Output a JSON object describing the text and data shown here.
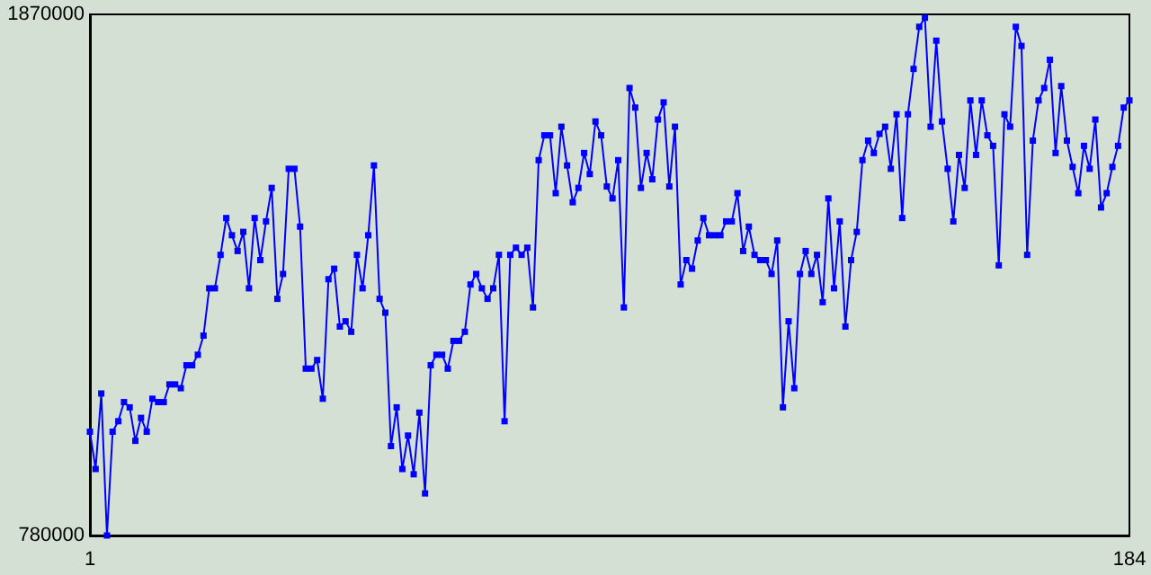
{
  "chart_data": {
    "type": "line",
    "x": [
      1,
      2,
      3,
      4,
      5,
      6,
      7,
      8,
      9,
      10,
      11,
      12,
      13,
      14,
      15,
      16,
      17,
      18,
      19,
      20,
      21,
      22,
      23,
      24,
      25,
      26,
      27,
      28,
      29,
      30,
      31,
      32,
      33,
      34,
      35,
      36,
      37,
      38,
      39,
      40,
      41,
      42,
      43,
      44,
      45,
      46,
      47,
      48,
      49,
      50,
      51,
      52,
      53,
      54,
      55,
      56,
      57,
      58,
      59,
      60,
      61,
      62,
      63,
      64,
      65,
      66,
      67,
      68,
      69,
      70,
      71,
      72,
      73,
      74,
      75,
      76,
      77,
      78,
      79,
      80,
      81,
      82,
      83,
      84,
      85,
      86,
      87,
      88,
      89,
      90,
      91,
      92,
      93,
      94,
      95,
      96,
      97,
      98,
      99,
      100,
      101,
      102,
      103,
      104,
      105,
      106,
      107,
      108,
      109,
      110,
      111,
      112,
      113,
      114,
      115,
      116,
      117,
      118,
      119,
      120,
      121,
      122,
      123,
      124,
      125,
      126,
      127,
      128,
      129,
      130,
      131,
      132,
      133,
      134,
      135,
      136,
      137,
      138,
      139,
      140,
      141,
      142,
      143,
      144,
      145,
      146,
      147,
      148,
      149,
      150,
      151,
      152,
      153,
      154,
      155,
      156,
      157,
      158,
      159,
      160,
      161,
      162,
      163,
      164,
      165,
      166,
      167,
      168,
      169,
      170,
      171,
      172,
      173,
      174,
      175,
      176,
      177,
      178,
      179,
      180,
      181,
      182,
      183,
      184
    ],
    "series": [
      {
        "color": "#0000ff",
        "values": [
          997000,
          919000,
          1077000,
          780000,
          997000,
          1019000,
          1059000,
          1048000,
          978000,
          1026000,
          997000,
          1066000,
          1059000,
          1059000,
          1096000,
          1096000,
          1088000,
          1136000,
          1136000,
          1158000,
          1198000,
          1297000,
          1297000,
          1367000,
          1444000,
          1408000,
          1375000,
          1415000,
          1297000,
          1444000,
          1356000,
          1437000,
          1507000,
          1275000,
          1327000,
          1547000,
          1547000,
          1426000,
          1129000,
          1129000,
          1147000,
          1066000,
          1316000,
          1338000,
          1217000,
          1228000,
          1206000,
          1367000,
          1297000,
          1408000,
          1554000,
          1275000,
          1246000,
          967000,
          1048000,
          919000,
          989000,
          908000,
          1037000,
          868000,
          1136000,
          1158000,
          1158000,
          1129000,
          1187000,
          1187000,
          1206000,
          1305000,
          1327000,
          1297000,
          1275000,
          1297000,
          1367000,
          1019000,
          1367000,
          1382000,
          1367000,
          1382000,
          1257000,
          1565000,
          1617000,
          1617000,
          1496000,
          1635000,
          1554000,
          1477000,
          1507000,
          1580000,
          1536000,
          1646000,
          1617000,
          1510000,
          1485000,
          1565000,
          1257000,
          1716000,
          1675000,
          1507000,
          1580000,
          1525000,
          1650000,
          1686000,
          1510000,
          1635000,
          1305000,
          1356000,
          1338000,
          1397000,
          1444000,
          1408000,
          1408000,
          1408000,
          1437000,
          1437000,
          1496000,
          1375000,
          1426000,
          1367000,
          1356000,
          1356000,
          1327000,
          1397000,
          1048000,
          1228000,
          1088000,
          1327000,
          1375000,
          1327000,
          1367000,
          1268000,
          1485000,
          1297000,
          1437000,
          1217000,
          1356000,
          1415000,
          1565000,
          1606000,
          1580000,
          1620000,
          1635000,
          1547000,
          1661000,
          1444000,
          1661000,
          1756000,
          1844000,
          1863000,
          1635000,
          1815000,
          1646000,
          1547000,
          1437000,
          1576000,
          1507000,
          1690000,
          1576000,
          1690000,
          1617000,
          1595000,
          1345000,
          1661000,
          1635000,
          1844000,
          1804000,
          1367000,
          1606000,
          1690000,
          1716000,
          1775000,
          1580000,
          1720000,
          1606000,
          1551000,
          1496000,
          1595000,
          1547000,
          1650000,
          1466000,
          1496000,
          1551000,
          1595000,
          1675000,
          1690000
        ]
      }
    ],
    "xlim": [
      1,
      184
    ],
    "xticks": [
      1,
      184
    ],
    "ylim": [
      780000,
      1870000
    ],
    "yticks": [
      780000,
      1870000
    ],
    "marker": "square",
    "grid": false
  }
}
